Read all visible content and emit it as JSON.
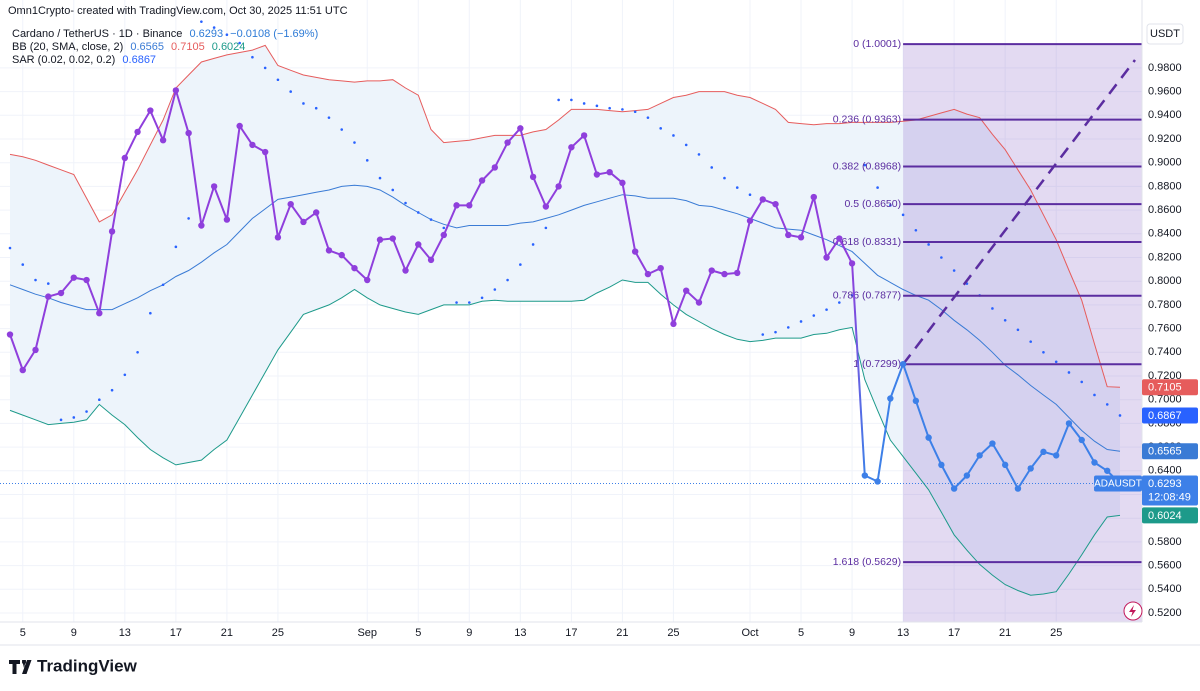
{
  "chart_data": {
    "type": "line",
    "header": "Omn1Crypto- created with TradingView.com, Oct 30, 2025 11:51 UTC",
    "currency": "USDT",
    "brand": "TradingView",
    "categories": [
      null,
      "5",
      null,
      null,
      null,
      "9",
      null,
      null,
      null,
      "13",
      null,
      null,
      null,
      "17",
      null,
      null,
      null,
      "21",
      null,
      null,
      null,
      "25",
      null,
      null,
      null,
      null,
      null,
      null,
      "Sep",
      null,
      null,
      null,
      "5",
      null,
      null,
      null,
      "9",
      null,
      null,
      null,
      "13",
      null,
      null,
      null,
      "17",
      null,
      null,
      null,
      "21",
      null,
      null,
      null,
      "25",
      null,
      null,
      null,
      null,
      null,
      "Oct",
      null,
      null,
      null,
      "5",
      null,
      null,
      null,
      "9",
      null,
      null,
      null,
      "13",
      null,
      null,
      null,
      "17",
      null,
      null,
      null,
      "21",
      null,
      null,
      null,
      "25",
      null,
      null,
      null,
      null,
      null
    ],
    "ylim": [
      0.5124,
      1.0373
    ],
    "yticks": [
      {
        "value": 0.52,
        "label": "0.5200"
      },
      {
        "value": 0.54,
        "label": "0.5400"
      },
      {
        "value": 0.56,
        "label": "0.5600"
      },
      {
        "value": 0.58,
        "label": "0.5800"
      },
      {
        "value": 0.6,
        "label": "0.6000"
      },
      {
        "value": 0.62,
        "label": "0.6200"
      },
      {
        "value": 0.64,
        "label": "0.6400"
      },
      {
        "value": 0.66,
        "label": "0.6600"
      },
      {
        "value": 0.68,
        "label": "0.6800"
      },
      {
        "value": 0.7,
        "label": "0.7000"
      },
      {
        "value": 0.72,
        "label": "0.7200"
      },
      {
        "value": 0.74,
        "label": "0.7400"
      },
      {
        "value": 0.76,
        "label": "0.7600"
      },
      {
        "value": 0.78,
        "label": "0.7800"
      },
      {
        "value": 0.8,
        "label": "0.8000"
      },
      {
        "value": 0.82,
        "label": "0.8200"
      },
      {
        "value": 0.84,
        "label": "0.8400"
      },
      {
        "value": 0.86,
        "label": "0.8600"
      },
      {
        "value": 0.88,
        "label": "0.8800"
      },
      {
        "value": 0.9,
        "label": "0.9000"
      },
      {
        "value": 0.92,
        "label": "0.9200"
      },
      {
        "value": 0.94,
        "label": "0.9400"
      },
      {
        "value": 0.96,
        "label": "0.9600"
      },
      {
        "value": 0.98,
        "label": "0.9800"
      }
    ],
    "grid": true,
    "price": {
      "name": "Cardano / TetherUS · 1D · Binance",
      "symbol": "ADAUSDT",
      "countdown": "12:08:49",
      "change": "−0.0108 (−1.69%)",
      "color": "#8f3fdc",
      "recent_color": "#3d80e8",
      "values": [
        0.755,
        0.725,
        0.742,
        0.787,
        0.79,
        0.803,
        0.801,
        0.773,
        0.842,
        0.904,
        0.926,
        0.944,
        0.919,
        0.961,
        0.925,
        0.847,
        0.88,
        0.852,
        0.931,
        0.915,
        0.909,
        0.837,
        0.865,
        0.85,
        0.858,
        0.826,
        0.822,
        0.811,
        0.801,
        0.835,
        0.836,
        0.809,
        0.831,
        0.818,
        0.839,
        0.864,
        0.864,
        0.885,
        0.896,
        0.917,
        0.929,
        0.888,
        0.863,
        0.88,
        0.913,
        0.923,
        0.89,
        0.892,
        0.883,
        0.825,
        0.806,
        0.811,
        0.764,
        0.792,
        0.782,
        0.809,
        0.806,
        0.807,
        0.851,
        0.869,
        0.865,
        0.839,
        0.837,
        0.871,
        0.82,
        0.836,
        0.815,
        0.636,
        0.631,
        0.701,
        0.73,
        0.699,
        0.668,
        0.645,
        0.625,
        0.636,
        0.653,
        0.663,
        0.645,
        0.625,
        0.642,
        0.656,
        0.653,
        0.68,
        0.666,
        0.647,
        0.64,
        0.6293
      ]
    },
    "bb": {
      "name": "BB (20, SMA, close, 2)",
      "fill": "#edf4fb",
      "middle": {
        "color": "#3a7bd5",
        "values": [
          0.797,
          0.793,
          0.789,
          0.786,
          0.782,
          0.779,
          0.776,
          0.776,
          0.776,
          0.781,
          0.786,
          0.792,
          0.797,
          0.804,
          0.809,
          0.816,
          0.824,
          0.831,
          0.842,
          0.853,
          0.861,
          0.869,
          0.871,
          0.873,
          0.875,
          0.877,
          0.88,
          0.881,
          0.88,
          0.877,
          0.871,
          0.864,
          0.858,
          0.852,
          0.848,
          0.845,
          0.847,
          0.847,
          0.847,
          0.847,
          0.849,
          0.85,
          0.853,
          0.856,
          0.86,
          0.864,
          0.867,
          0.87,
          0.873,
          0.872,
          0.87,
          0.87,
          0.87,
          0.868,
          0.864,
          0.863,
          0.86,
          0.857,
          0.853,
          0.849,
          0.845,
          0.844,
          0.843,
          0.839,
          0.835,
          0.83,
          0.825,
          0.815,
          0.805,
          0.799,
          0.793,
          0.788,
          0.784,
          0.776,
          0.767,
          0.759,
          0.75,
          0.74,
          0.729,
          0.721,
          0.712,
          0.704,
          0.696,
          0.685,
          0.674,
          0.665,
          0.658,
          0.6565
        ]
      },
      "upper": {
        "color": "#e65c5c",
        "values": [
          0.907,
          0.905,
          0.902,
          0.898,
          0.894,
          0.89,
          0.87,
          0.85,
          0.856,
          0.875,
          0.894,
          0.915,
          0.936,
          0.963,
          0.974,
          0.985,
          0.988,
          0.991,
          0.993,
          0.995,
          0.999,
          0.982,
          0.978,
          0.974,
          0.972,
          0.97,
          0.969,
          0.968,
          0.969,
          0.969,
          0.97,
          0.963,
          0.957,
          0.928,
          0.917,
          0.918,
          0.919,
          0.921,
          0.923,
          0.923,
          0.923,
          0.926,
          0.928,
          0.936,
          0.945,
          0.945,
          0.945,
          0.944,
          0.943,
          0.944,
          0.945,
          0.95,
          0.955,
          0.957,
          0.96,
          0.96,
          0.96,
          0.957,
          0.955,
          0.95,
          0.945,
          0.934,
          0.933,
          0.932,
          0.933,
          0.933,
          0.934,
          0.934,
          0.934,
          0.934,
          0.935,
          0.936,
          0.939,
          0.942,
          0.945,
          0.941,
          0.938,
          0.924,
          0.911,
          0.894,
          0.877,
          0.856,
          0.835,
          0.809,
          0.784,
          0.747,
          0.711,
          0.7105
        ]
      },
      "lower": {
        "color": "#1d9a8a",
        "values": [
          0.691,
          0.687,
          0.683,
          0.679,
          0.68,
          0.681,
          0.683,
          0.696,
          0.687,
          0.679,
          0.668,
          0.658,
          0.651,
          0.645,
          0.647,
          0.649,
          0.658,
          0.666,
          0.685,
          0.704,
          0.723,
          0.742,
          0.757,
          0.772,
          0.776,
          0.78,
          0.786,
          0.793,
          0.786,
          0.78,
          0.777,
          0.774,
          0.772,
          0.776,
          0.78,
          0.78,
          0.78,
          0.783,
          0.784,
          0.783,
          0.783,
          0.783,
          0.783,
          0.783,
          0.783,
          0.784,
          0.79,
          0.795,
          0.801,
          0.799,
          0.799,
          0.789,
          0.78,
          0.772,
          0.766,
          0.76,
          0.755,
          0.751,
          0.749,
          0.75,
          0.752,
          0.752,
          0.752,
          0.755,
          0.756,
          0.759,
          0.761,
          0.717,
          0.691,
          0.666,
          0.652,
          0.638,
          0.624,
          0.605,
          0.586,
          0.573,
          0.561,
          0.552,
          0.544,
          0.539,
          0.535,
          0.536,
          0.538,
          0.553,
          0.569,
          0.586,
          0.601,
          0.6024
        ]
      }
    },
    "sar": {
      "name": "SAR (0.02, 0.02, 0.2)",
      "color": "#2962ff",
      "values": [
        0.828,
        0.814,
        0.801,
        0.798,
        0.683,
        0.685,
        0.69,
        0.7,
        0.708,
        0.721,
        0.74,
        0.773,
        0.797,
        0.829,
        0.853,
        1.019,
        1.014,
        1.008,
        1.001,
        0.989,
        0.98,
        0.97,
        0.96,
        0.95,
        0.946,
        0.938,
        0.928,
        0.917,
        0.902,
        0.887,
        0.877,
        0.866,
        0.858,
        0.852,
        0.845,
        0.782,
        0.782,
        0.786,
        0.793,
        0.801,
        0.814,
        0.831,
        0.845,
        0.953,
        0.953,
        0.95,
        0.948,
        0.946,
        0.945,
        0.943,
        0.938,
        0.929,
        0.923,
        0.915,
        0.907,
        0.896,
        0.887,
        0.879,
        0.873,
        0.755,
        0.757,
        0.761,
        0.766,
        0.771,
        0.776,
        0.782,
        0.788,
        0.898,
        0.879,
        0.864,
        0.856,
        0.843,
        0.831,
        0.82,
        0.809,
        0.798,
        0.788,
        0.777,
        0.767,
        0.759,
        0.749,
        0.74,
        0.732,
        0.723,
        0.715,
        0.704,
        0.696,
        0.6867
      ]
    },
    "fib": {
      "color": "#5b2da0",
      "levels": [
        {
          "value": 1.0001,
          "label": "0 (1.0001)"
        },
        {
          "value": 0.9363,
          "label": "0.236 (0.9363)"
        },
        {
          "value": 0.8968,
          "label": "0.382 (0.8968)"
        },
        {
          "value": 0.865,
          "label": "0.5 (0.8650)"
        },
        {
          "value": 0.8331,
          "label": "0.618 (0.8331)"
        },
        {
          "value": 0.7877,
          "label": "0.786 (0.7877)"
        },
        {
          "value": 0.7299,
          "label": "1 (0.7299)"
        },
        {
          "value": 0.5629,
          "label": "1.618 (0.5629)"
        }
      ]
    }
  }
}
